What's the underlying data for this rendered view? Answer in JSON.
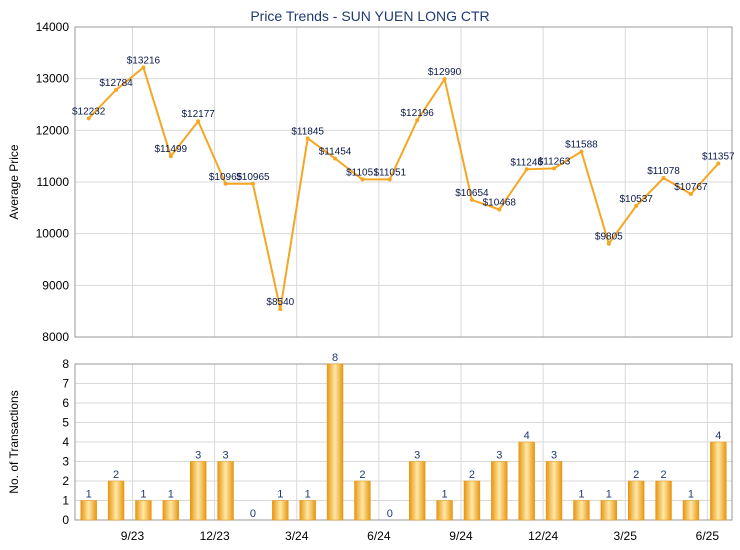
{
  "title": "Price Trends - SUN YUEN LONG CTR",
  "colors": {
    "title": "#1f3a73",
    "line": "#f5a623",
    "bar_light": "#ffe9a8",
    "bar_dark": "#e8950f",
    "grid": "#d9d9d9",
    "axis_text": "#000000",
    "label_price": "#0a1a4a",
    "label_count": "#1f3a73"
  },
  "chart_data": [
    {
      "type": "line",
      "ylabel": "Average Price",
      "ylim": [
        8000,
        14000
      ],
      "yticks": [
        8000,
        9000,
        10000,
        11000,
        12000,
        13000,
        14000
      ],
      "grid": true,
      "x_tick_labels": [
        "9/23",
        "12/23",
        "3/24",
        "6/24",
        "9/24",
        "12/24",
        "3/25",
        "6/25"
      ],
      "value_labels": [
        "$12232",
        "$12784",
        "$13216",
        "$11499",
        "$12177",
        "$10965",
        "$10965",
        "$8540",
        "$11845",
        "$11454",
        "$11051",
        "$11051",
        "$12196",
        "$12990",
        "$10654",
        "$10468",
        "$11246",
        "$11263",
        "$11588",
        "$9805",
        "$10537",
        "$11078",
        "$10767",
        "$11357"
      ],
      "values": [
        12232,
        12784,
        13216,
        11499,
        12177,
        10965,
        10965,
        8540,
        11845,
        11454,
        11051,
        11051,
        12196,
        12990,
        10654,
        10468,
        11246,
        11263,
        11588,
        9805,
        10537,
        11078,
        10767,
        11357
      ]
    },
    {
      "type": "bar",
      "ylabel": "No. of Transactions",
      "ylim": [
        0,
        8
      ],
      "yticks": [
        0,
        1,
        2,
        3,
        4,
        5,
        6,
        7,
        8
      ],
      "grid": true,
      "x_tick_labels": [
        "9/23",
        "12/23",
        "3/24",
        "6/24",
        "9/24",
        "12/24",
        "3/25",
        "6/25"
      ],
      "values": [
        1,
        2,
        1,
        1,
        3,
        3,
        0,
        1,
        1,
        8,
        2,
        0,
        3,
        1,
        2,
        3,
        4,
        3,
        1,
        1,
        2,
        2,
        1,
        4
      ]
    }
  ]
}
